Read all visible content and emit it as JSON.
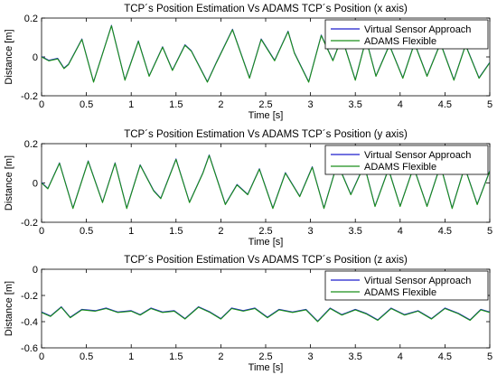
{
  "chart_data": [
    {
      "type": "line",
      "title": "TCP´s Position Estimation Vs ADAMS TCP´s Position (x axis)",
      "xlabel": "Time [s]",
      "ylabel": "Distance [m]",
      "xlim": [
        0,
        5
      ],
      "ylim": [
        -0.2,
        0.2
      ],
      "xticks": [
        "0",
        "0.5",
        "1",
        "1.5",
        "2",
        "2.5",
        "3",
        "3.5",
        "4",
        "4.5",
        "5"
      ],
      "yticks": [
        "-0.2",
        "0",
        "0.2"
      ],
      "legend_position": "top-right",
      "grid": false,
      "series": [
        {
          "name": "Virtual Sensor Approach",
          "color": "#1f1fcc"
        },
        {
          "name": "ADAMS Flexible",
          "color": "#1a8f1a"
        }
      ],
      "x": [
        0,
        0.08,
        0.18,
        0.25,
        0.3,
        0.45,
        0.58,
        0.78,
        0.93,
        1.08,
        1.2,
        1.35,
        1.46,
        1.6,
        1.67,
        1.85,
        1.95,
        2.13,
        2.32,
        2.45,
        2.6,
        2.75,
        2.82,
        2.98,
        3.12,
        3.25,
        3.35,
        3.5,
        3.62,
        3.73,
        3.88,
        4.03,
        4.16,
        4.3,
        4.45,
        4.6,
        4.73,
        4.88,
        5.0
      ],
      "values": [
        0,
        -0.02,
        -0.01,
        -0.06,
        -0.04,
        0.09,
        -0.13,
        0.16,
        -0.12,
        0.08,
        -0.1,
        0.05,
        -0.07,
        0.06,
        0.03,
        -0.13,
        -0.03,
        0.14,
        -0.11,
        0.09,
        -0.02,
        0.13,
        0.02,
        -0.13,
        0.11,
        -0.02,
        0.1,
        -0.12,
        0.09,
        -0.1,
        0.06,
        -0.11,
        0.07,
        -0.1,
        0.07,
        -0.12,
        0.06,
        -0.11,
        -0.03
      ]
    },
    {
      "type": "line",
      "title": "TCP´s Position Estimation Vs ADAMS TCP´s Position (y axis)",
      "xlabel": "Time [s]",
      "ylabel": "Distance [m]",
      "xlim": [
        0,
        5
      ],
      "ylim": [
        -0.2,
        0.2
      ],
      "xticks": [
        "0",
        "0.5",
        "1",
        "1.5",
        "2",
        "2.5",
        "3",
        "3.5",
        "4",
        "4.5",
        "5"
      ],
      "yticks": [
        "-0.2",
        "0",
        "0.2"
      ],
      "legend_position": "top-right",
      "grid": false,
      "series": [
        {
          "name": "Virtual Sensor Approach",
          "color": "#1f1fcc"
        },
        {
          "name": "ADAMS Flexible",
          "color": "#1a8f1a"
        }
      ],
      "x": [
        0,
        0.07,
        0.2,
        0.35,
        0.52,
        0.68,
        0.82,
        0.95,
        1.1,
        1.25,
        1.33,
        1.5,
        1.65,
        1.8,
        1.87,
        2.05,
        2.18,
        2.3,
        2.43,
        2.58,
        2.72,
        2.88,
        3.02,
        3.15,
        3.3,
        3.45,
        3.6,
        3.72,
        3.87,
        4.0,
        4.15,
        4.3,
        4.45,
        4.58,
        4.72,
        4.86,
        5.0
      ],
      "values": [
        0,
        -0.03,
        0.1,
        -0.13,
        0.11,
        -0.1,
        0.1,
        -0.13,
        0.09,
        -0.04,
        -0.08,
        0.12,
        -0.1,
        0.05,
        0.14,
        -0.11,
        -0.01,
        -0.06,
        0.07,
        -0.13,
        0.05,
        -0.07,
        0.08,
        -0.13,
        0.1,
        -0.06,
        0.09,
        -0.12,
        0.07,
        -0.12,
        0.08,
        -0.12,
        0.09,
        -0.13,
        0.08,
        -0.11,
        0.06
      ]
    },
    {
      "type": "line",
      "title": "TCP´s Position Estimation Vs ADAMS TCP´s Position (z axis)",
      "xlabel": "Time [s]",
      "ylabel": "Distance [m]",
      "xlim": [
        0,
        5
      ],
      "ylim": [
        -0.6,
        0
      ],
      "xticks": [
        "0",
        "0.5",
        "1",
        "1.5",
        "2",
        "2.5",
        "3",
        "3.5",
        "4",
        "4.5",
        "5"
      ],
      "yticks": [
        "-0.6",
        "-0.4",
        "-0.2",
        "0"
      ],
      "legend_position": "top-right",
      "grid": false,
      "series": [
        {
          "name": "Virtual Sensor Approach",
          "color": "#1f1fcc"
        },
        {
          "name": "ADAMS Flexible",
          "color": "#1a8f1a"
        }
      ],
      "x": [
        0,
        0.1,
        0.22,
        0.32,
        0.45,
        0.6,
        0.72,
        0.85,
        1.0,
        1.1,
        1.22,
        1.35,
        1.48,
        1.6,
        1.75,
        1.88,
        2.0,
        2.12,
        2.25,
        2.38,
        2.52,
        2.65,
        2.8,
        2.95,
        3.08,
        3.22,
        3.35,
        3.5,
        3.62,
        3.75,
        3.9,
        4.05,
        4.2,
        4.35,
        4.5,
        4.65,
        4.78,
        4.9,
        5.0
      ],
      "values": [
        -0.33,
        -0.36,
        -0.29,
        -0.37,
        -0.31,
        -0.32,
        -0.3,
        -0.33,
        -0.32,
        -0.35,
        -0.3,
        -0.33,
        -0.32,
        -0.38,
        -0.29,
        -0.33,
        -0.38,
        -0.3,
        -0.32,
        -0.3,
        -0.37,
        -0.31,
        -0.33,
        -0.31,
        -0.4,
        -0.3,
        -0.35,
        -0.31,
        -0.34,
        -0.39,
        -0.3,
        -0.35,
        -0.32,
        -0.38,
        -0.3,
        -0.34,
        -0.39,
        -0.31,
        -0.33
      ]
    }
  ]
}
